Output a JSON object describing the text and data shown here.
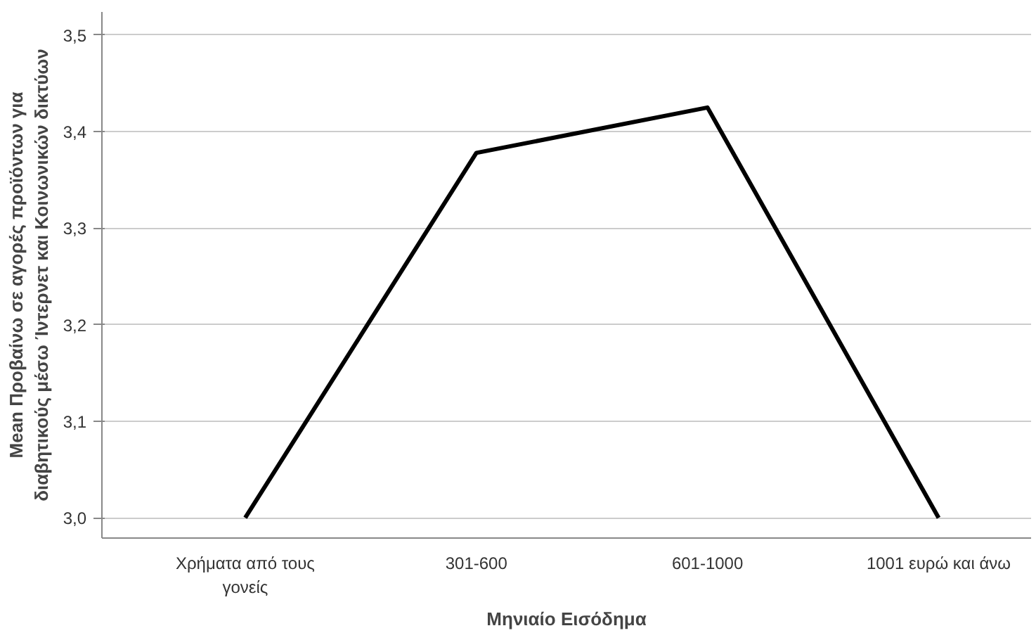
{
  "chart_data": {
    "type": "line",
    "xlabel": "Μηνιαίο Εισόδημα",
    "ylabel": "Mean Προβαίνω σε αγορές προϊόντων για\nδιαβητικούς μέσω Ίντερνετ και Κοινωνικών δικτύων",
    "categories": [
      "Χρήματα από τους γονείς",
      "301-600",
      "601-1000",
      "1001 ευρώ και άνω"
    ],
    "series": [
      {
        "color": "#000000",
        "values": [
          3.0,
          3.378,
          3.425,
          3.0
        ]
      }
    ],
    "ylim": [
      2.979,
      3.524
    ],
    "yticks": [
      {
        "value": 3.0,
        "label": "3,0"
      },
      {
        "value": 3.1,
        "label": "3,1"
      },
      {
        "value": 3.2,
        "label": "3,2"
      },
      {
        "value": 3.3,
        "label": "3,3"
      },
      {
        "value": 3.4,
        "label": "3,4"
      },
      {
        "value": 3.5,
        "label": "3,5"
      }
    ],
    "grid": "y",
    "marker": "none",
    "line_style": "solid"
  }
}
